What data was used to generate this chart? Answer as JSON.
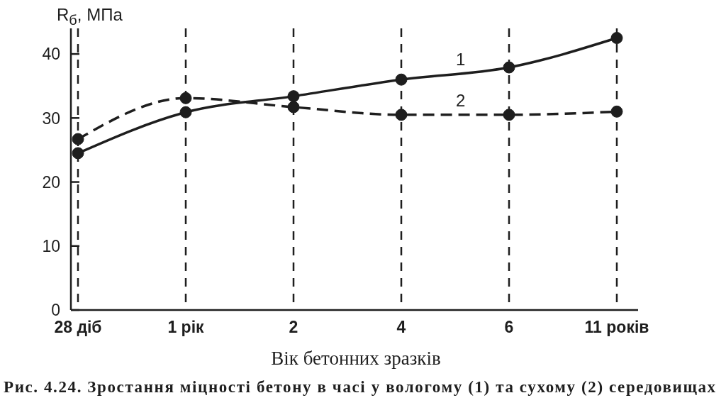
{
  "chart_data": {
    "type": "line",
    "ylabel": "R$_{б}$, МПа",
    "xlabel": "Вік бетонних зразків",
    "annotations": [
      "Рис. 4.24. Зростання міцності бетону в часі у вологому (1) та сухому (2) середовищах"
    ],
    "categories": [
      "28 діб",
      "1 рік",
      "2",
      "4",
      "6",
      "11 років"
    ],
    "series": [
      {
        "name": "1",
        "color": "#1e1e1e",
        "line_style": "solid",
        "values": [
          24.5,
          30.9,
          33.4,
          36.0,
          37.9,
          42.5
        ]
      },
      {
        "name": "2",
        "color": "#1e1e1e",
        "line_style": "dashed",
        "values": [
          26.7,
          33.1,
          31.7,
          30.5,
          30.5,
          31.0
        ]
      }
    ],
    "ylim": [
      0,
      44
    ],
    "yticks": [
      0,
      10,
      20,
      30,
      40
    ],
    "grid": "x",
    "marker": "circle"
  }
}
